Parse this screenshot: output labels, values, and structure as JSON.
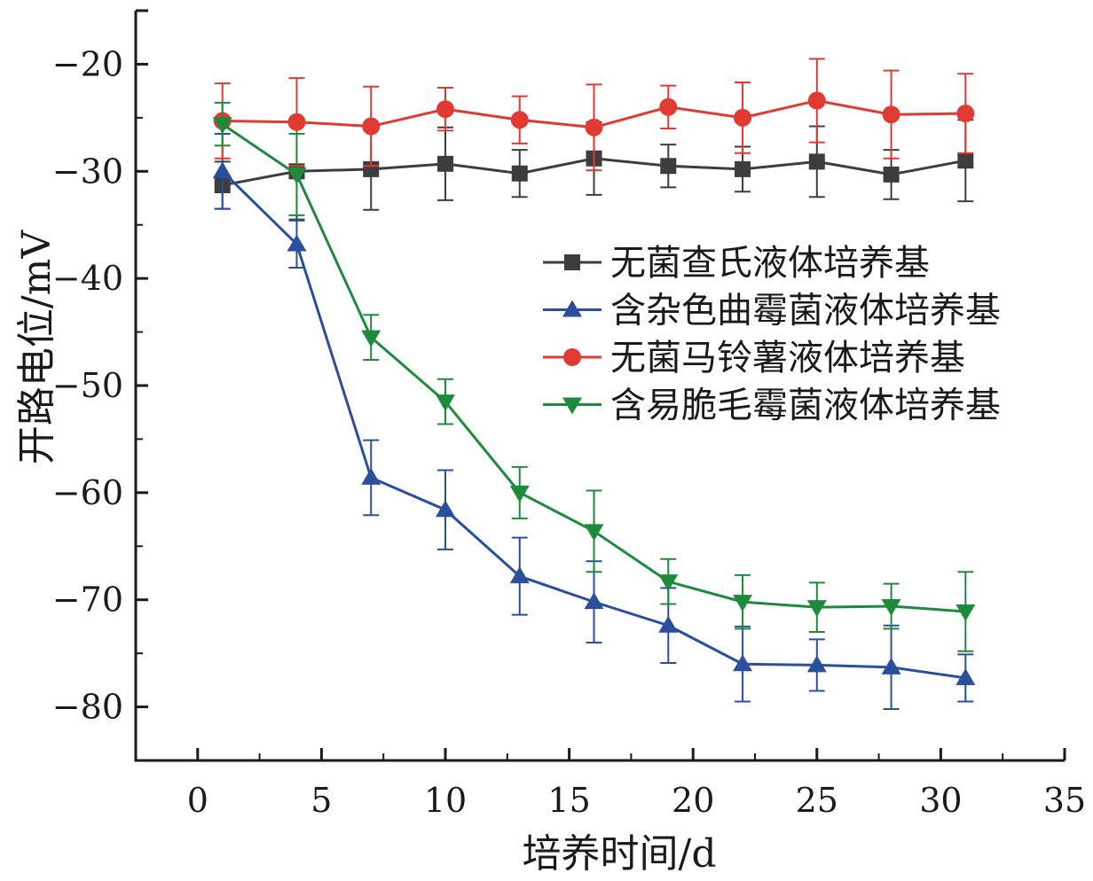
{
  "chart_data": {
    "type": "line",
    "title": "",
    "xlabel": "培养时间/d",
    "ylabel": "开路电位/mV",
    "xlim": [
      -2.5,
      35
    ],
    "ylim": [
      -85,
      -15
    ],
    "xticks": [
      0,
      5,
      10,
      15,
      20,
      25,
      30,
      35
    ],
    "yticks": [
      -20,
      -30,
      -40,
      -50,
      -60,
      -70,
      -80
    ],
    "xtick_labels": [
      "0",
      "5",
      "10",
      "15",
      "20",
      "25",
      "30",
      "35"
    ],
    "ytick_labels": [
      "−20",
      "−30",
      "−40",
      "−50",
      "−60",
      "−70",
      "−80"
    ],
    "grid": false,
    "legend_position": "center-right",
    "x": [
      1,
      4,
      7,
      10,
      13,
      16,
      19,
      22,
      25,
      28,
      31
    ],
    "series": [
      {
        "name": "无菌查氏液体培养基",
        "color": "#3d3d3d",
        "marker": "square",
        "values": [
          -31.3,
          -30.0,
          -29.8,
          -29.3,
          -30.2,
          -28.8,
          -29.5,
          -29.8,
          -29.1,
          -30.3,
          -29.0
        ],
        "errors": [
          2.2,
          4.5,
          3.8,
          3.4,
          2.2,
          3.4,
          2.0,
          2.1,
          3.3,
          2.3,
          3.8
        ]
      },
      {
        "name": "含杂色曲霉菌液体培养基",
        "color": "#2a4f9c",
        "marker": "triangle-up",
        "values": [
          -30.0,
          -36.8,
          -58.6,
          -61.6,
          -67.8,
          -70.2,
          -72.4,
          -76.0,
          -76.1,
          -76.3,
          -77.3
        ],
        "errors": [
          3.5,
          2.2,
          3.5,
          3.7,
          3.6,
          3.8,
          3.5,
          3.5,
          2.4,
          3.9,
          2.2
        ]
      },
      {
        "name": "无菌马铃薯液体培养基",
        "color": "#e03a32",
        "marker": "circle",
        "values": [
          -25.3,
          -25.4,
          -25.8,
          -24.2,
          -25.2,
          -25.9,
          -24.0,
          -25.0,
          -23.4,
          -24.7,
          -24.6
        ],
        "errors": [
          3.5,
          4.1,
          3.7,
          2.0,
          2.2,
          4.0,
          2.0,
          3.3,
          3.9,
          4.1,
          3.7
        ]
      },
      {
        "name": "含易脆毛霉菌液体培养基",
        "color": "#1e8a3c",
        "marker": "triangle-down",
        "values": [
          -25.6,
          -30.3,
          -45.5,
          -51.5,
          -60.0,
          -63.6,
          -68.3,
          -70.2,
          -70.7,
          -70.6,
          -71.1
        ],
        "errors": [
          2.0,
          3.8,
          2.1,
          2.1,
          2.4,
          3.8,
          2.1,
          2.5,
          2.3,
          2.1,
          3.7
        ]
      }
    ]
  }
}
